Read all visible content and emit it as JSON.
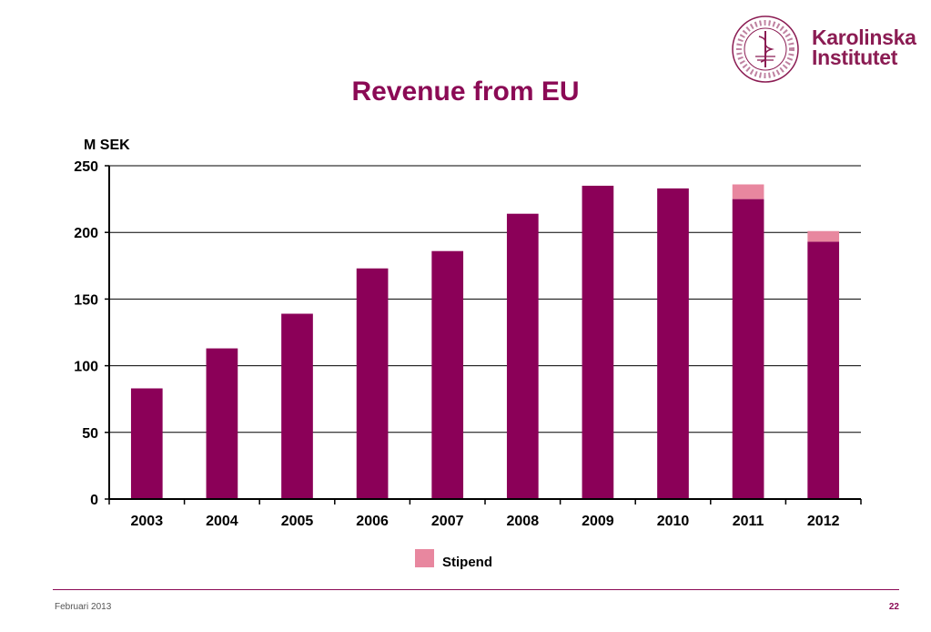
{
  "slide": {
    "title": "Revenue from EU",
    "logo_line1": "Karolinska",
    "logo_line2": "Institutet",
    "seal_text": "KAROLINSKA INSTITUTET · ANNO 1810",
    "footer_date": "Februari 2013",
    "page_number": "22"
  },
  "colors": {
    "bar": "#8b0058",
    "stipend": "#e8879f",
    "title": "#8b0a55"
  },
  "chart_data": {
    "type": "bar",
    "stacked": true,
    "title": "Revenue from EU",
    "ylabel": "M SEK",
    "xlabel": "",
    "ylim": [
      0,
      250
    ],
    "yticks": [
      0,
      50,
      100,
      150,
      200,
      250
    ],
    "grid": true,
    "legend_position": "bottom",
    "categories": [
      "2003",
      "2004",
      "2005",
      "2006",
      "2007",
      "2008",
      "2009",
      "2010",
      "2011",
      "2012"
    ],
    "series": [
      {
        "values": [
          83,
          113,
          139,
          173,
          186,
          214,
          235,
          233,
          225,
          193
        ],
        "color": "#8b0058"
      },
      {
        "name": "Stipend",
        "values": [
          0,
          0,
          0,
          0,
          0,
          0,
          0,
          0,
          11,
          8
        ],
        "color": "#e8879f"
      }
    ]
  }
}
